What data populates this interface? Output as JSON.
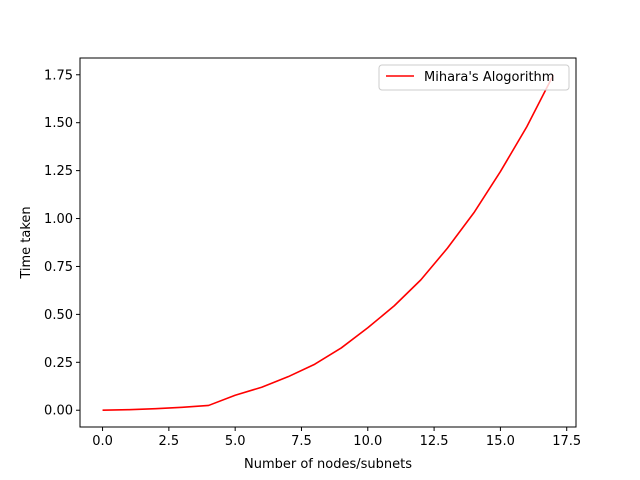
{
  "chart_data": {
    "type": "line",
    "title": "",
    "xlabel": "Number of nodes/subnets",
    "ylabel": "Time taken",
    "xlim": [
      -0.85,
      17.85
    ],
    "ylim": [
      -0.0875,
      1.8375
    ],
    "xticks": [
      0.0,
      2.5,
      5.0,
      7.5,
      10.0,
      12.5,
      15.0,
      17.5
    ],
    "xtick_labels": [
      "0.0",
      "2.5",
      "5.0",
      "7.5",
      "10.0",
      "12.5",
      "15.0",
      "17.5"
    ],
    "yticks": [
      0.0,
      0.25,
      0.5,
      0.75,
      1.0,
      1.25,
      1.5,
      1.75
    ],
    "ytick_labels": [
      "0.00",
      "0.25",
      "0.50",
      "0.75",
      "1.00",
      "1.25",
      "1.50",
      "1.75"
    ],
    "grid": false,
    "legend_position": "top-right",
    "series": [
      {
        "name": "Mihara's Alogorithm",
        "color": "#ff0000",
        "x": [
          0,
          1,
          2,
          3,
          4,
          5,
          6,
          7,
          8,
          9,
          10,
          11,
          12,
          13,
          14,
          15,
          16,
          17
        ],
        "y": [
          0.0,
          0.003,
          0.008,
          0.015,
          0.025,
          0.078,
          0.12,
          0.175,
          0.24,
          0.325,
          0.43,
          0.545,
          0.68,
          0.845,
          1.03,
          1.245,
          1.48,
          1.75
        ]
      }
    ]
  }
}
